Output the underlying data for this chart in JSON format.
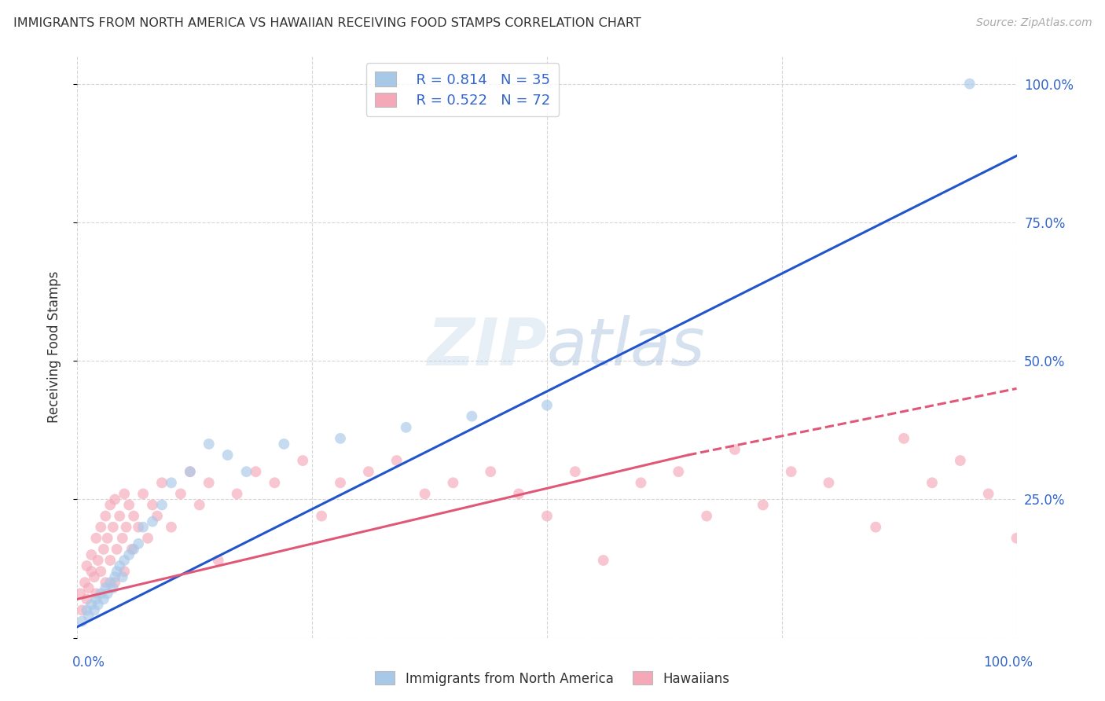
{
  "title": "IMMIGRANTS FROM NORTH AMERICA VS HAWAIIAN RECEIVING FOOD STAMPS CORRELATION CHART",
  "source": "Source: ZipAtlas.com",
  "ylabel": "Receiving Food Stamps",
  "xlim": [
    0,
    100
  ],
  "ylim": [
    0,
    105
  ],
  "blue_color": "#a8c8e8",
  "pink_color": "#f4a8b8",
  "blue_line_color": "#2255cc",
  "pink_line_color": "#e05878",
  "legend_label_blue": "R = 0.814   N = 35",
  "legend_label_pink": "R = 0.522   N = 72",
  "watermark": "ZIPatlas",
  "blue_scatter_x": [
    0.5,
    1.0,
    1.2,
    1.5,
    1.8,
    2.0,
    2.2,
    2.5,
    2.8,
    3.0,
    3.2,
    3.5,
    3.8,
    4.0,
    4.2,
    4.5,
    4.8,
    5.0,
    5.5,
    6.0,
    6.5,
    7.0,
    8.0,
    9.0,
    10.0,
    12.0,
    14.0,
    16.0,
    18.0,
    22.0,
    28.0,
    35.0,
    42.0,
    50.0,
    95.0
  ],
  "blue_scatter_y": [
    3.0,
    5.0,
    4.0,
    6.0,
    5.0,
    7.0,
    6.0,
    8.0,
    7.0,
    9.0,
    8.0,
    10.0,
    9.0,
    11.0,
    12.0,
    13.0,
    11.0,
    14.0,
    15.0,
    16.0,
    17.0,
    20.0,
    21.0,
    24.0,
    28.0,
    30.0,
    35.0,
    33.0,
    30.0,
    35.0,
    36.0,
    38.0,
    40.0,
    42.0,
    100.0
  ],
  "pink_scatter_x": [
    0.3,
    0.5,
    0.8,
    1.0,
    1.0,
    1.2,
    1.5,
    1.5,
    1.8,
    2.0,
    2.0,
    2.2,
    2.5,
    2.5,
    2.8,
    3.0,
    3.0,
    3.2,
    3.5,
    3.5,
    3.8,
    4.0,
    4.0,
    4.2,
    4.5,
    4.8,
    5.0,
    5.0,
    5.2,
    5.5,
    5.8,
    6.0,
    6.5,
    7.0,
    7.5,
    8.0,
    8.5,
    9.0,
    10.0,
    11.0,
    12.0,
    13.0,
    14.0,
    15.0,
    17.0,
    19.0,
    21.0,
    24.0,
    26.0,
    28.0,
    31.0,
    34.0,
    37.0,
    40.0,
    44.0,
    47.0,
    50.0,
    53.0,
    56.0,
    60.0,
    64.0,
    67.0,
    70.0,
    73.0,
    76.0,
    80.0,
    85.0,
    88.0,
    91.0,
    94.0,
    97.0,
    100.0
  ],
  "pink_scatter_y": [
    8.0,
    5.0,
    10.0,
    7.0,
    13.0,
    9.0,
    12.0,
    15.0,
    11.0,
    8.0,
    18.0,
    14.0,
    12.0,
    20.0,
    16.0,
    10.0,
    22.0,
    18.0,
    14.0,
    24.0,
    20.0,
    10.0,
    25.0,
    16.0,
    22.0,
    18.0,
    12.0,
    26.0,
    20.0,
    24.0,
    16.0,
    22.0,
    20.0,
    26.0,
    18.0,
    24.0,
    22.0,
    28.0,
    20.0,
    26.0,
    30.0,
    24.0,
    28.0,
    14.0,
    26.0,
    30.0,
    28.0,
    32.0,
    22.0,
    28.0,
    30.0,
    32.0,
    26.0,
    28.0,
    30.0,
    26.0,
    22.0,
    30.0,
    14.0,
    28.0,
    30.0,
    22.0,
    34.0,
    24.0,
    30.0,
    28.0,
    20.0,
    36.0,
    28.0,
    32.0,
    26.0,
    18.0
  ],
  "blue_line_x0": 0,
  "blue_line_y0": 2,
  "blue_line_x1": 100,
  "blue_line_y1": 87,
  "pink_solid_x0": 0,
  "pink_solid_y0": 7,
  "pink_solid_x1": 65,
  "pink_solid_y1": 33,
  "pink_dashed_x0": 65,
  "pink_dashed_y0": 33,
  "pink_dashed_x1": 100,
  "pink_dashed_y1": 45,
  "grid_color": "#cccccc",
  "background_color": "#ffffff",
  "title_color": "#333333",
  "axis_label_color": "#3366cc",
  "marker_size": 100,
  "marker_alpha": 0.65
}
